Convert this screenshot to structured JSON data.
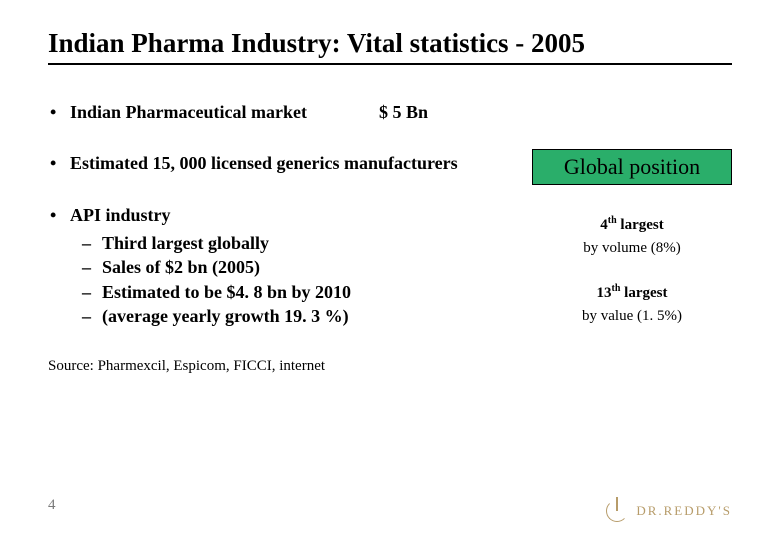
{
  "title": "Indian Pharma Industry: Vital statistics - 2005",
  "bullets": {
    "b1_label": "Indian Pharmaceutical market",
    "b1_value": "$ 5 Bn",
    "b2": "Estimated 15, 000 licensed generics manufacturers",
    "b3": "API industry",
    "b3_subs": {
      "s1": "Third largest globally",
      "s2": "Sales of $2 bn (2005)",
      "s3": "Estimated to be $4. 8 bn by 2010",
      "s4": "(average yearly growth 19. 3 %)"
    }
  },
  "global": {
    "box": "Global position",
    "rank1_num": "4",
    "rank1_suffix": "th",
    "rank1_tail": " largest",
    "rank1_detail": "by volume (8%)",
    "rank2_num": "13",
    "rank2_suffix": "th",
    "rank2_tail": " largest",
    "rank2_detail": "by value (1. 5%)"
  },
  "source": "Source: Pharmexcil, Espicom, FICCI, internet",
  "page": "4",
  "logo_text": "DR.REDDY'S"
}
